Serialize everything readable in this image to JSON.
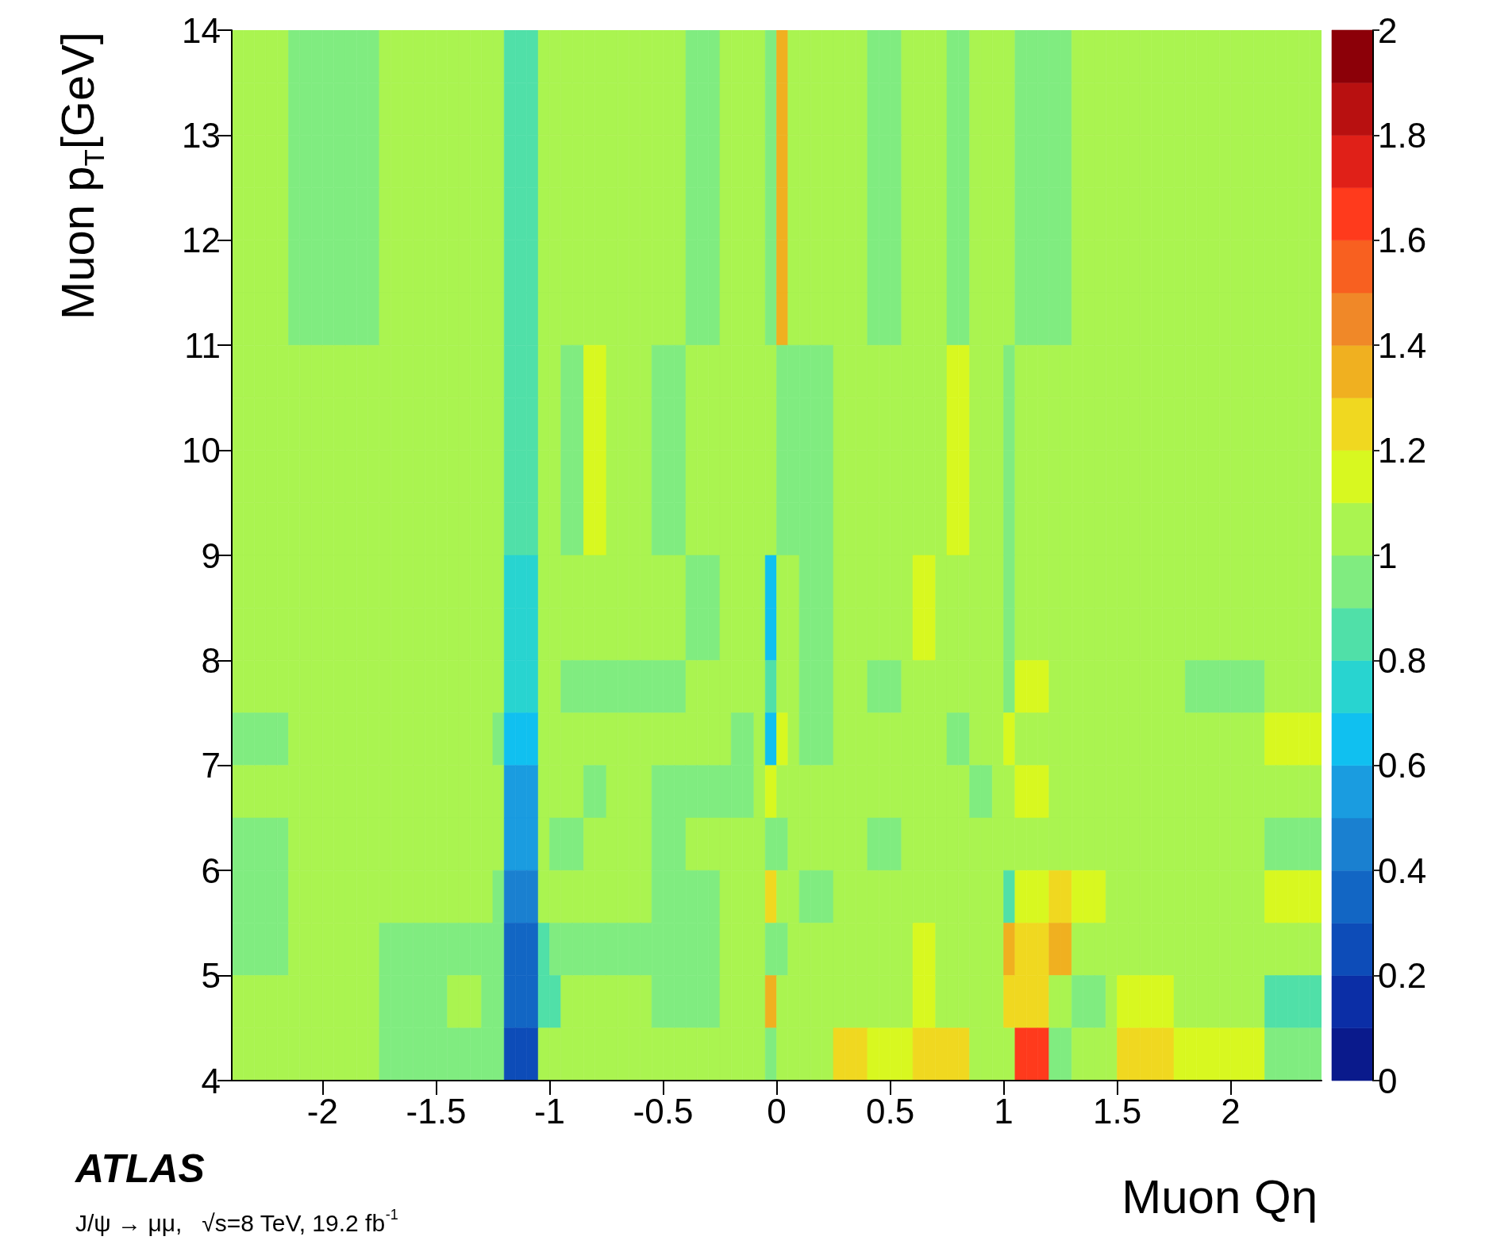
{
  "chart_data": {
    "type": "heatmap",
    "xlabel": "Muon Qη",
    "ylabel": "Muon p$_{T}$[GeV]",
    "annotations": [
      "ATLAS",
      "J/ψ → μμ,   √s=8 TeV, 19.2 fb$^{-1}$"
    ],
    "xlim": [
      -2.4,
      2.4
    ],
    "xticks": [
      -2,
      -1.5,
      -1,
      -0.5,
      0,
      0.5,
      1,
      1.5,
      2
    ],
    "ylim": [
      4,
      14
    ],
    "yticks": [
      4,
      5,
      6,
      7,
      8,
      9,
      10,
      11,
      12,
      13,
      14
    ],
    "clim": [
      0,
      2
    ],
    "cticks": [
      0,
      0.2,
      0.4,
      0.6,
      0.8,
      1,
      1.2,
      1.4,
      1.6,
      1.8,
      2
    ],
    "cells": [
      [
        1.05,
        1.05,
        1.05,
        1.05,
        1.05,
        0.95,
        0.95,
        0.95,
        0.95,
        0.95,
        0.95,
        0.95,
        0.95,
        1.05,
        1.05,
        1.05,
        1.05,
        1.05,
        1.05,
        1.05,
        1.05,
        1.05,
        1.05,
        1.05,
        0.85,
        0.85,
        0.85,
        1.05,
        1.05,
        1.05,
        1.05,
        1.05,
        1.05,
        1.05,
        1.05,
        1.05,
        1.05,
        1.05,
        1.05,
        1.05,
        0.95,
        0.95,
        0.95,
        1.05,
        1.05,
        1.05,
        1.05,
        0.95,
        1.35,
        1.05,
        1.05,
        1.05,
        1.05,
        1.05,
        1.05,
        1.05,
        0.95,
        0.95,
        0.95,
        1.05,
        1.05,
        1.05,
        1.05,
        0.95,
        0.95,
        1.05,
        1.05,
        1.05,
        1.05,
        0.95,
        0.95,
        0.95,
        0.95,
        0.95,
        1.05,
        1.05,
        1.05,
        1.05,
        1.05,
        1.05,
        1.05,
        1.05,
        1.05,
        1.05,
        1.05,
        1.05,
        1.05,
        1.05,
        1.05,
        1.05,
        1.05,
        1.05,
        1.05,
        1.05,
        1.05,
        1.05
      ],
      [
        1.05,
        1.05,
        1.05,
        1.05,
        1.05,
        0.95,
        0.95,
        0.95,
        0.95,
        0.95,
        0.95,
        0.95,
        0.95,
        1.05,
        1.05,
        1.05,
        1.05,
        1.05,
        1.05,
        1.05,
        1.05,
        1.05,
        1.05,
        1.05,
        0.85,
        0.85,
        0.85,
        1.05,
        1.05,
        1.05,
        1.05,
        1.05,
        1.05,
        1.05,
        1.05,
        1.05,
        1.05,
        1.05,
        1.05,
        1.05,
        0.95,
        0.95,
        0.95,
        1.05,
        1.05,
        1.05,
        1.05,
        0.95,
        1.35,
        1.05,
        1.05,
        1.05,
        1.05,
        1.05,
        1.05,
        1.05,
        0.95,
        0.95,
        0.95,
        1.05,
        1.05,
        1.05,
        1.05,
        0.95,
        0.95,
        1.05,
        1.05,
        1.05,
        1.05,
        0.95,
        0.95,
        0.95,
        0.95,
        0.95,
        1.05,
        1.05,
        1.05,
        1.05,
        1.05,
        1.05,
        1.05,
        1.05,
        1.05,
        1.05,
        1.05,
        1.05,
        1.05,
        1.05,
        1.05,
        1.05,
        1.05,
        1.05,
        1.05,
        1.05,
        1.05,
        1.05
      ],
      [
        1.05,
        1.05,
        1.05,
        1.05,
        1.05,
        0.95,
        0.95,
        0.95,
        0.95,
        0.95,
        0.95,
        0.95,
        0.95,
        1.05,
        1.05,
        1.05,
        1.05,
        1.05,
        1.05,
        1.05,
        1.05,
        1.05,
        1.05,
        1.05,
        0.85,
        0.85,
        0.85,
        1.05,
        1.05,
        1.05,
        1.05,
        1.05,
        1.05,
        1.05,
        1.05,
        1.05,
        1.05,
        1.05,
        1.05,
        1.05,
        0.95,
        0.95,
        0.95,
        1.05,
        1.05,
        1.05,
        1.05,
        0.95,
        1.35,
        1.05,
        1.05,
        1.05,
        1.05,
        1.05,
        1.05,
        1.05,
        0.95,
        0.95,
        0.95,
        1.05,
        1.05,
        1.05,
        1.05,
        0.95,
        0.95,
        1.05,
        1.05,
        1.05,
        1.05,
        0.95,
        0.95,
        0.95,
        0.95,
        0.95,
        1.05,
        1.05,
        1.05,
        1.05,
        1.05,
        1.05,
        1.05,
        1.05,
        1.05,
        1.05,
        1.05,
        1.05,
        1.05,
        1.05,
        1.05,
        1.05,
        1.05,
        1.05,
        1.05,
        1.05,
        1.05,
        1.05
      ],
      [
        1.05,
        1.05,
        1.05,
        1.05,
        1.05,
        0.95,
        0.95,
        0.95,
        0.95,
        0.95,
        0.95,
        0.95,
        0.95,
        1.05,
        1.05,
        1.05,
        1.05,
        1.05,
        1.05,
        1.05,
        1.05,
        1.05,
        1.05,
        1.05,
        0.85,
        0.85,
        0.85,
        1.05,
        1.05,
        1.05,
        1.05,
        1.05,
        1.05,
        1.05,
        1.05,
        1.05,
        1.05,
        1.05,
        1.05,
        1.05,
        0.95,
        0.95,
        0.95,
        1.05,
        1.05,
        1.05,
        1.05,
        0.95,
        1.35,
        1.05,
        1.05,
        1.05,
        1.05,
        1.05,
        1.05,
        1.05,
        0.95,
        0.95,
        0.95,
        1.05,
        1.05,
        1.05,
        1.05,
        0.95,
        0.95,
        1.05,
        1.05,
        1.05,
        1.05,
        0.95,
        0.95,
        0.95,
        0.95,
        0.95,
        1.05,
        1.05,
        1.05,
        1.05,
        1.05,
        1.05,
        1.05,
        1.05,
        1.05,
        1.05,
        1.05,
        1.05,
        1.05,
        1.05,
        1.05,
        1.05,
        1.05,
        1.05,
        1.05,
        1.05,
        1.05,
        1.05
      ],
      [
        1.05,
        1.05,
        1.05,
        1.05,
        1.05,
        0.95,
        0.95,
        0.95,
        0.95,
        0.95,
        0.95,
        0.95,
        0.95,
        1.05,
        1.05,
        1.05,
        1.05,
        1.05,
        1.05,
        1.05,
        1.05,
        1.05,
        1.05,
        1.05,
        0.85,
        0.85,
        0.85,
        1.05,
        1.05,
        1.05,
        1.05,
        1.05,
        1.05,
        1.05,
        1.05,
        1.05,
        1.05,
        1.05,
        1.05,
        1.05,
        0.95,
        0.95,
        0.95,
        1.05,
        1.05,
        1.05,
        1.05,
        0.95,
        1.35,
        1.05,
        1.05,
        1.05,
        1.05,
        1.05,
        1.05,
        1.05,
        0.95,
        0.95,
        0.95,
        1.05,
        1.05,
        1.05,
        1.05,
        0.95,
        0.95,
        1.05,
        1.05,
        1.05,
        1.05,
        0.95,
        0.95,
        0.95,
        0.95,
        0.95,
        1.05,
        1.05,
        1.05,
        1.05,
        1.05,
        1.05,
        1.05,
        1.05,
        1.05,
        1.05,
        1.05,
        1.05,
        1.05,
        1.05,
        1.05,
        1.05,
        1.05,
        1.05,
        1.05,
        1.05,
        1.05,
        1.05
      ],
      [
        1.05,
        1.05,
        1.05,
        1.05,
        1.05,
        0.95,
        0.95,
        0.95,
        0.95,
        0.95,
        0.95,
        0.95,
        0.95,
        1.05,
        1.05,
        1.05,
        1.05,
        1.05,
        1.05,
        1.05,
        1.05,
        1.05,
        1.05,
        1.05,
        0.85,
        0.85,
        0.85,
        1.05,
        1.05,
        1.05,
        1.05,
        1.05,
        1.05,
        1.05,
        1.05,
        1.05,
        1.05,
        1.05,
        1.05,
        1.05,
        0.95,
        0.95,
        0.95,
        1.05,
        1.05,
        1.05,
        1.05,
        0.95,
        1.35,
        1.05,
        1.05,
        1.05,
        1.05,
        1.05,
        1.05,
        1.05,
        0.95,
        0.95,
        0.95,
        1.05,
        1.05,
        1.05,
        1.05,
        0.95,
        0.95,
        1.05,
        1.05,
        1.05,
        1.05,
        0.95,
        0.95,
        0.95,
        0.95,
        0.95,
        1.05,
        1.05,
        1.05,
        1.05,
        1.05,
        1.05,
        1.05,
        1.05,
        1.05,
        1.05,
        1.05,
        1.05,
        1.05,
        1.05,
        1.05,
        1.05,
        1.05,
        1.05,
        1.05,
        1.05,
        1.05,
        1.05
      ],
      [
        1.05,
        1.05,
        1.05,
        1.05,
        1.05,
        1.05,
        1.05,
        1.05,
        1.05,
        1.05,
        1.05,
        1.05,
        1.05,
        1.05,
        1.05,
        1.05,
        1.05,
        1.05,
        1.05,
        1.05,
        1.05,
        1.05,
        1.05,
        1.05,
        0.85,
        0.85,
        0.85,
        1.05,
        1.05,
        0.95,
        0.95,
        1.15,
        1.15,
        1.05,
        1.05,
        1.05,
        1.05,
        0.95,
        0.95,
        0.95,
        1.05,
        1.05,
        1.05,
        1.05,
        1.05,
        1.05,
        1.05,
        1.05,
        0.95,
        0.95,
        0.95,
        0.95,
        0.95,
        1.05,
        1.05,
        1.05,
        1.05,
        1.05,
        1.05,
        1.05,
        1.05,
        1.05,
        1.05,
        1.15,
        1.15,
        1.05,
        1.05,
        1.05,
        0.95,
        1.05,
        1.05,
        1.05,
        1.05,
        1.05,
        1.05,
        1.05,
        1.05,
        1.05,
        1.05,
        1.05,
        1.05,
        1.05,
        1.05,
        1.05,
        1.05,
        1.05,
        1.05,
        1.05,
        1.05,
        1.05,
        1.05,
        1.05,
        1.05,
        1.05,
        1.05,
        1.05
      ],
      [
        1.05,
        1.05,
        1.05,
        1.05,
        1.05,
        1.05,
        1.05,
        1.05,
        1.05,
        1.05,
        1.05,
        1.05,
        1.05,
        1.05,
        1.05,
        1.05,
        1.05,
        1.05,
        1.05,
        1.05,
        1.05,
        1.05,
        1.05,
        1.05,
        0.85,
        0.85,
        0.85,
        1.05,
        1.05,
        0.95,
        0.95,
        1.15,
        1.15,
        1.05,
        1.05,
        1.05,
        1.05,
        0.95,
        0.95,
        0.95,
        1.05,
        1.05,
        1.05,
        1.05,
        1.05,
        1.05,
        1.05,
        1.05,
        0.95,
        0.95,
        0.95,
        0.95,
        0.95,
        1.05,
        1.05,
        1.05,
        1.05,
        1.05,
        1.05,
        1.05,
        1.05,
        1.05,
        1.05,
        1.15,
        1.15,
        1.05,
        1.05,
        1.05,
        0.95,
        1.05,
        1.05,
        1.05,
        1.05,
        1.05,
        1.05,
        1.05,
        1.05,
        1.05,
        1.05,
        1.05,
        1.05,
        1.05,
        1.05,
        1.05,
        1.05,
        1.05,
        1.05,
        1.05,
        1.05,
        1.05,
        1.05,
        1.05,
        1.05,
        1.05,
        1.05,
        1.05
      ],
      [
        1.05,
        1.05,
        1.05,
        1.05,
        1.05,
        1.05,
        1.05,
        1.05,
        1.05,
        1.05,
        1.05,
        1.05,
        1.05,
        1.05,
        1.05,
        1.05,
        1.05,
        1.05,
        1.05,
        1.05,
        1.05,
        1.05,
        1.05,
        1.05,
        0.85,
        0.85,
        0.85,
        1.05,
        1.05,
        0.95,
        0.95,
        1.15,
        1.15,
        1.05,
        1.05,
        1.05,
        1.05,
        0.95,
        0.95,
        0.95,
        1.05,
        1.05,
        1.05,
        1.05,
        1.05,
        1.05,
        1.05,
        1.05,
        0.95,
        0.95,
        0.95,
        0.95,
        0.95,
        1.05,
        1.05,
        1.05,
        1.05,
        1.05,
        1.05,
        1.05,
        1.05,
        1.05,
        1.05,
        1.15,
        1.15,
        1.05,
        1.05,
        1.05,
        0.95,
        1.05,
        1.05,
        1.05,
        1.05,
        1.05,
        1.05,
        1.05,
        1.05,
        1.05,
        1.05,
        1.05,
        1.05,
        1.05,
        1.05,
        1.05,
        1.05,
        1.05,
        1.05,
        1.05,
        1.05,
        1.05,
        1.05,
        1.05,
        1.05,
        1.05,
        1.05,
        1.05
      ],
      [
        1.05,
        1.05,
        1.05,
        1.05,
        1.05,
        1.05,
        1.05,
        1.05,
        1.05,
        1.05,
        1.05,
        1.05,
        1.05,
        1.05,
        1.05,
        1.05,
        1.05,
        1.05,
        1.05,
        1.05,
        1.05,
        1.05,
        1.05,
        1.05,
        0.85,
        0.85,
        0.85,
        1.05,
        1.05,
        0.95,
        0.95,
        1.15,
        1.15,
        1.05,
        1.05,
        1.05,
        1.05,
        0.95,
        0.95,
        0.95,
        1.05,
        1.05,
        1.05,
        1.05,
        1.05,
        1.05,
        1.05,
        1.05,
        0.95,
        0.95,
        0.95,
        0.95,
        0.95,
        1.05,
        1.05,
        1.05,
        1.05,
        1.05,
        1.05,
        1.05,
        1.05,
        1.05,
        1.05,
        1.15,
        1.15,
        1.05,
        1.05,
        1.05,
        0.95,
        1.05,
        1.05,
        1.05,
        1.05,
        1.05,
        1.05,
        1.05,
        1.05,
        1.05,
        1.05,
        1.05,
        1.05,
        1.05,
        1.05,
        1.05,
        1.05,
        1.05,
        1.05,
        1.05,
        1.05,
        1.05,
        1.05,
        1.05,
        1.05,
        1.05,
        1.05,
        1.05
      ],
      [
        1.05,
        1.05,
        1.05,
        1.05,
        1.05,
        1.05,
        1.05,
        1.05,
        1.05,
        1.05,
        1.05,
        1.05,
        1.05,
        1.05,
        1.05,
        1.05,
        1.05,
        1.05,
        1.05,
        1.05,
        1.05,
        1.05,
        1.05,
        1.05,
        0.75,
        0.75,
        0.75,
        1.05,
        1.05,
        1.05,
        1.05,
        1.05,
        1.05,
        1.05,
        1.05,
        1.05,
        1.05,
        1.05,
        1.05,
        1.05,
        0.95,
        0.95,
        0.95,
        1.05,
        1.05,
        1.05,
        1.05,
        0.65,
        1.05,
        1.05,
        0.95,
        0.95,
        0.95,
        1.05,
        1.05,
        1.05,
        1.05,
        1.05,
        1.05,
        1.05,
        1.15,
        1.15,
        1.05,
        1.05,
        1.05,
        1.05,
        1.05,
        1.05,
        0.95,
        1.05,
        1.05,
        1.05,
        1.05,
        1.05,
        1.05,
        1.05,
        1.05,
        1.05,
        1.05,
        1.05,
        1.05,
        1.05,
        1.05,
        1.05,
        1.05,
        1.05,
        1.05,
        1.05,
        1.05,
        1.05,
        1.05,
        1.05,
        1.05,
        1.05,
        1.05,
        1.05
      ],
      [
        1.05,
        1.05,
        1.05,
        1.05,
        1.05,
        1.05,
        1.05,
        1.05,
        1.05,
        1.05,
        1.05,
        1.05,
        1.05,
        1.05,
        1.05,
        1.05,
        1.05,
        1.05,
        1.05,
        1.05,
        1.05,
        1.05,
        1.05,
        1.05,
        0.75,
        0.75,
        0.75,
        1.05,
        1.05,
        1.05,
        1.05,
        1.05,
        1.05,
        1.05,
        1.05,
        1.05,
        1.05,
        1.05,
        1.05,
        1.05,
        0.95,
        0.95,
        0.95,
        1.05,
        1.05,
        1.05,
        1.05,
        0.65,
        1.05,
        1.05,
        0.95,
        0.95,
        0.95,
        1.05,
        1.05,
        1.05,
        1.05,
        1.05,
        1.05,
        1.05,
        1.15,
        1.15,
        1.05,
        1.05,
        1.05,
        1.05,
        1.05,
        1.05,
        0.95,
        1.05,
        1.05,
        1.05,
        1.05,
        1.05,
        1.05,
        1.05,
        1.05,
        1.05,
        1.05,
        1.05,
        1.05,
        1.05,
        1.05,
        1.05,
        1.05,
        1.05,
        1.05,
        1.05,
        1.05,
        1.05,
        1.05,
        1.05,
        1.05,
        1.05,
        1.05,
        1.05
      ],
      [
        1.05,
        1.05,
        1.05,
        1.05,
        1.05,
        1.05,
        1.05,
        1.05,
        1.05,
        1.05,
        1.05,
        1.05,
        1.05,
        1.05,
        1.05,
        1.05,
        1.05,
        1.05,
        1.05,
        1.05,
        1.05,
        1.05,
        1.05,
        1.05,
        0.75,
        0.75,
        0.75,
        1.05,
        1.05,
        0.95,
        0.95,
        0.95,
        0.95,
        0.95,
        0.95,
        0.95,
        0.95,
        0.95,
        0.95,
        0.95,
        1.05,
        1.05,
        1.05,
        1.05,
        1.05,
        1.05,
        1.05,
        0.85,
        1.05,
        1.05,
        0.95,
        0.95,
        0.95,
        1.05,
        1.05,
        1.05,
        0.95,
        0.95,
        0.95,
        1.05,
        1.05,
        1.05,
        1.05,
        1.05,
        1.05,
        1.05,
        1.05,
        1.05,
        0.95,
        1.15,
        1.15,
        1.15,
        1.05,
        1.05,
        1.05,
        1.05,
        1.05,
        1.05,
        1.05,
        1.05,
        1.05,
        1.05,
        1.05,
        1.05,
        0.95,
        0.95,
        0.95,
        0.95,
        0.95,
        0.95,
        0.95,
        1.05,
        1.05,
        1.05,
        1.05,
        1.05
      ],
      [
        0.95,
        0.95,
        0.95,
        0.95,
        0.95,
        1.05,
        1.05,
        1.05,
        1.05,
        1.05,
        1.05,
        1.05,
        1.05,
        1.05,
        1.05,
        1.05,
        1.05,
        1.05,
        1.05,
        1.05,
        1.05,
        1.05,
        1.05,
        0.95,
        0.65,
        0.65,
        0.65,
        1.05,
        1.05,
        1.05,
        1.05,
        1.05,
        1.05,
        1.05,
        1.05,
        1.05,
        1.05,
        1.05,
        1.05,
        1.05,
        1.05,
        1.05,
        1.05,
        1.05,
        0.95,
        0.95,
        1.05,
        0.65,
        1.15,
        1.05,
        0.95,
        0.95,
        0.95,
        1.05,
        1.05,
        1.05,
        1.05,
        1.05,
        1.05,
        1.05,
        1.05,
        1.05,
        1.05,
        0.95,
        0.95,
        1.05,
        1.05,
        1.05,
        1.15,
        1.05,
        1.05,
        1.05,
        1.05,
        1.05,
        1.05,
        1.05,
        1.05,
        1.05,
        1.05,
        1.05,
        1.05,
        1.05,
        1.05,
        1.05,
        1.05,
        1.05,
        1.05,
        1.05,
        1.05,
        1.05,
        1.05,
        1.15,
        1.15,
        1.15,
        1.15,
        1.15
      ],
      [
        1.05,
        1.05,
        1.05,
        1.05,
        1.05,
        1.05,
        1.05,
        1.05,
        1.05,
        1.05,
        1.05,
        1.05,
        1.05,
        1.05,
        1.05,
        1.05,
        1.05,
        1.05,
        1.05,
        1.05,
        1.05,
        1.05,
        1.05,
        1.05,
        0.55,
        0.55,
        0.55,
        1.05,
        1.05,
        1.05,
        1.05,
        0.95,
        0.95,
        1.05,
        1.05,
        1.05,
        1.05,
        0.95,
        0.95,
        0.95,
        0.95,
        0.95,
        0.95,
        0.95,
        0.95,
        0.95,
        1.05,
        1.15,
        1.05,
        1.05,
        1.05,
        1.05,
        1.05,
        1.05,
        1.05,
        1.05,
        1.05,
        1.05,
        1.05,
        1.05,
        1.05,
        1.05,
        1.05,
        1.05,
        1.05,
        0.95,
        0.95,
        1.05,
        1.05,
        1.15,
        1.15,
        1.15,
        1.05,
        1.05,
        1.05,
        1.05,
        1.05,
        1.05,
        1.05,
        1.05,
        1.05,
        1.05,
        1.05,
        1.05,
        1.05,
        1.05,
        1.05,
        1.05,
        1.05,
        1.05,
        1.05,
        1.05,
        1.05,
        1.05,
        1.05,
        1.05
      ],
      [
        0.95,
        0.95,
        0.95,
        0.95,
        0.95,
        1.05,
        1.05,
        1.05,
        1.05,
        1.05,
        1.05,
        1.05,
        1.05,
        1.05,
        1.05,
        1.05,
        1.05,
        1.05,
        1.05,
        1.05,
        1.05,
        1.05,
        1.05,
        1.05,
        0.55,
        0.55,
        0.55,
        1.05,
        0.95,
        0.95,
        0.95,
        1.05,
        1.05,
        1.05,
        1.05,
        1.05,
        1.05,
        0.95,
        0.95,
        0.95,
        1.05,
        1.05,
        1.05,
        1.05,
        1.05,
        1.05,
        1.05,
        0.95,
        0.95,
        1.05,
        1.05,
        1.05,
        1.05,
        1.05,
        1.05,
        1.05,
        0.95,
        0.95,
        0.95,
        1.05,
        1.05,
        1.05,
        1.05,
        1.05,
        1.05,
        1.05,
        1.05,
        1.05,
        1.05,
        1.05,
        1.05,
        1.05,
        1.05,
        1.05,
        1.05,
        1.05,
        1.05,
        1.05,
        1.05,
        1.05,
        1.05,
        1.05,
        1.05,
        1.05,
        1.05,
        1.05,
        1.05,
        1.05,
        1.05,
        1.05,
        1.05,
        0.95,
        0.95,
        0.95,
        0.95,
        0.95
      ],
      [
        0.95,
        0.95,
        0.95,
        0.95,
        0.95,
        1.05,
        1.05,
        1.05,
        1.05,
        1.05,
        1.05,
        1.05,
        1.05,
        1.05,
        1.05,
        1.05,
        1.05,
        1.05,
        1.05,
        1.05,
        1.05,
        1.05,
        1.05,
        0.95,
        0.45,
        0.45,
        0.45,
        1.05,
        1.05,
        1.05,
        1.05,
        1.05,
        1.05,
        1.05,
        1.05,
        1.05,
        1.05,
        0.95,
        0.95,
        0.95,
        0.95,
        0.95,
        0.95,
        1.05,
        1.05,
        1.05,
        1.05,
        1.25,
        1.05,
        1.05,
        0.95,
        0.95,
        0.95,
        1.05,
        1.05,
        1.05,
        1.05,
        1.05,
        1.05,
        1.05,
        1.05,
        1.05,
        1.05,
        1.05,
        1.05,
        1.05,
        1.05,
        1.05,
        0.85,
        1.15,
        1.15,
        1.15,
        1.25,
        1.25,
        1.15,
        1.15,
        1.15,
        1.05,
        1.05,
        1.05,
        1.05,
        1.05,
        1.05,
        1.05,
        1.05,
        1.05,
        1.05,
        1.05,
        1.05,
        1.05,
        1.05,
        1.15,
        1.15,
        1.15,
        1.15,
        1.15
      ],
      [
        0.95,
        0.95,
        0.95,
        0.95,
        0.95,
        1.05,
        1.05,
        1.05,
        1.05,
        1.05,
        1.05,
        1.05,
        1.05,
        0.95,
        0.95,
        0.95,
        0.95,
        0.95,
        0.95,
        0.95,
        0.95,
        0.95,
        0.95,
        0.95,
        0.35,
        0.35,
        0.35,
        0.85,
        0.95,
        0.95,
        0.95,
        0.95,
        0.95,
        0.95,
        0.95,
        0.95,
        0.95,
        0.95,
        0.95,
        0.95,
        0.95,
        0.95,
        0.95,
        1.05,
        1.05,
        1.05,
        1.05,
        0.95,
        0.95,
        1.05,
        1.05,
        1.05,
        1.05,
        1.05,
        1.05,
        1.05,
        1.05,
        1.05,
        1.05,
        1.05,
        1.15,
        1.15,
        1.05,
        1.05,
        1.05,
        1.05,
        1.05,
        1.05,
        1.35,
        1.25,
        1.25,
        1.25,
        1.35,
        1.35,
        1.05,
        1.05,
        1.05,
        1.05,
        1.05,
        1.05,
        1.05,
        1.05,
        1.05,
        1.05,
        1.05,
        1.05,
        1.05,
        1.05,
        1.05,
        1.05,
        1.05,
        1.05,
        1.05,
        1.05,
        1.05,
        1.05
      ],
      [
        1.05,
        1.05,
        1.05,
        1.05,
        1.05,
        1.05,
        1.05,
        1.05,
        1.05,
        1.05,
        1.05,
        1.05,
        1.05,
        0.95,
        0.95,
        0.95,
        0.95,
        0.95,
        0.95,
        1.05,
        1.05,
        1.05,
        0.95,
        0.95,
        0.35,
        0.35,
        0.35,
        0.85,
        0.85,
        1.05,
        1.05,
        1.05,
        1.05,
        1.05,
        1.05,
        1.05,
        1.05,
        0.95,
        0.95,
        0.95,
        0.95,
        0.95,
        0.95,
        1.05,
        1.05,
        1.05,
        1.05,
        1.35,
        1.05,
        1.05,
        1.05,
        1.05,
        1.05,
        1.05,
        1.05,
        1.05,
        1.05,
        1.05,
        1.05,
        1.05,
        1.15,
        1.15,
        1.05,
        1.05,
        1.05,
        1.05,
        1.05,
        1.05,
        1.25,
        1.25,
        1.25,
        1.25,
        1.05,
        1.05,
        0.95,
        0.95,
        0.95,
        1.05,
        1.15,
        1.15,
        1.15,
        1.15,
        1.15,
        1.05,
        1.05,
        1.05,
        1.05,
        1.05,
        1.05,
        1.05,
        1.05,
        0.85,
        0.85,
        0.85,
        0.85,
        0.85
      ],
      [
        1.05,
        1.05,
        1.05,
        1.05,
        1.05,
        1.05,
        1.05,
        1.05,
        1.05,
        1.05,
        1.05,
        1.05,
        1.05,
        0.95,
        0.95,
        0.95,
        0.95,
        0.95,
        0.95,
        0.95,
        0.95,
        0.95,
        0.95,
        0.95,
        0.25,
        0.25,
        0.25,
        1.05,
        1.05,
        1.05,
        1.05,
        1.05,
        1.05,
        1.05,
        1.05,
        1.05,
        1.05,
        1.05,
        1.05,
        1.05,
        1.05,
        1.05,
        1.05,
        1.05,
        1.05,
        1.05,
        1.05,
        0.95,
        1.05,
        1.05,
        1.05,
        1.05,
        1.05,
        1.25,
        1.25,
        1.25,
        1.15,
        1.15,
        1.15,
        1.15,
        1.25,
        1.25,
        1.25,
        1.25,
        1.25,
        1.05,
        1.05,
        1.05,
        1.05,
        1.65,
        1.65,
        1.65,
        0.95,
        0.95,
        1.05,
        1.05,
        1.05,
        1.05,
        1.25,
        1.25,
        1.25,
        1.25,
        1.25,
        1.15,
        1.15,
        1.15,
        1.15,
        1.15,
        1.15,
        1.15,
        1.15,
        0.95,
        0.95,
        0.95,
        0.95,
        0.95
      ]
    ]
  }
}
